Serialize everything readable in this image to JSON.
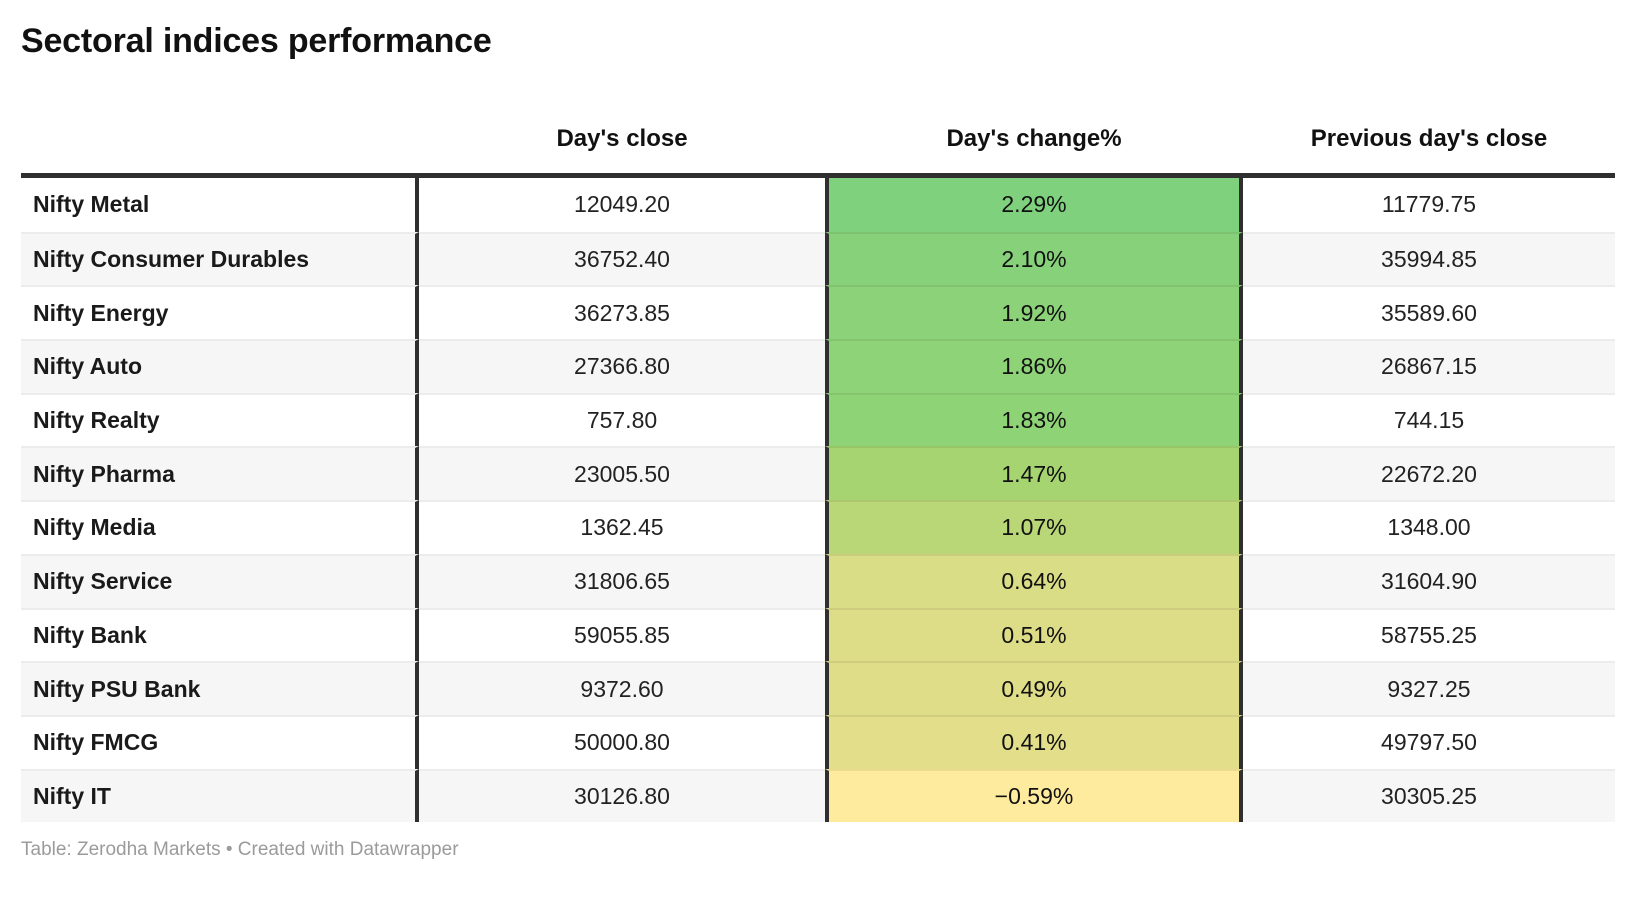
{
  "header": {
    "title": "Sectoral indices performance"
  },
  "table": {
    "columns": {
      "index": "",
      "close": "Day's close",
      "change": "Day's change%",
      "prev": "Previous day's close"
    }
  },
  "footer": {
    "text": "Table: Zerodha Markets • Created with Datawrapper"
  },
  "colors": {
    "border_dark": "#2f2f2f",
    "zebra_even_row": "#f6f6f6",
    "row_divider": "#ececec",
    "footer_text": "#9b9b9b",
    "heatmap_max_green": "#7fd17d",
    "heatmap_min_yellow": "#ffeb9d"
  },
  "chart_data": {
    "type": "table",
    "title": "Sectoral indices performance",
    "columns": [
      "",
      "Day's close",
      "Day's change%",
      "Previous day's close"
    ],
    "rows": [
      {
        "index": "Nifty Metal",
        "close": "12049.20",
        "change": "2.29%",
        "change_value": 2.29,
        "prev": "11779.75",
        "change_color": "#7fd17d"
      },
      {
        "index": "Nifty Consumer Durables",
        "close": "36752.40",
        "change": "2.10%",
        "change_value": 2.1,
        "prev": "35994.85",
        "change_color": "#86d17a"
      },
      {
        "index": "Nifty Energy",
        "close": "36273.85",
        "change": "1.92%",
        "change_value": 1.92,
        "prev": "35589.60",
        "change_color": "#8cd278"
      },
      {
        "index": "Nifty Auto",
        "close": "27366.80",
        "change": "1.86%",
        "change_value": 1.86,
        "prev": "26867.15",
        "change_color": "#8ed377"
      },
      {
        "index": "Nifty Realty",
        "close": "757.80",
        "change": "1.83%",
        "change_value": 1.83,
        "prev": "744.15",
        "change_color": "#8fd377"
      },
      {
        "index": "Nifty Pharma",
        "close": "23005.50",
        "change": "1.47%",
        "change_value": 1.47,
        "prev": "22672.20",
        "change_color": "#a5d471"
      },
      {
        "index": "Nifty Media",
        "close": "1362.45",
        "change": "1.07%",
        "change_value": 1.07,
        "prev": "1348.00",
        "change_color": "#bad778"
      },
      {
        "index": "Nifty Service",
        "close": "31806.65",
        "change": "0.64%",
        "change_value": 0.64,
        "prev": "31604.90",
        "change_color": "#d9dd85"
      },
      {
        "index": "Nifty Bank",
        "close": "59055.85",
        "change": "0.51%",
        "change_value": 0.51,
        "prev": "58755.25",
        "change_color": "#dedd87"
      },
      {
        "index": "Nifty PSU Bank",
        "close": "9372.60",
        "change": "0.49%",
        "change_value": 0.49,
        "prev": "9327.25",
        "change_color": "#dfdd88"
      },
      {
        "index": "Nifty FMCG",
        "close": "50000.80",
        "change": "0.41%",
        "change_value": 0.41,
        "prev": "49797.50",
        "change_color": "#e2de8a"
      },
      {
        "index": "Nifty IT",
        "close": "30126.80",
        "change": "−0.59%",
        "change_value": -0.59,
        "prev": "30305.25",
        "change_color": "#ffeb9d"
      }
    ],
    "legend_position": "none",
    "notes": "Table: Zerodha Markets • Created with Datawrapper"
  }
}
